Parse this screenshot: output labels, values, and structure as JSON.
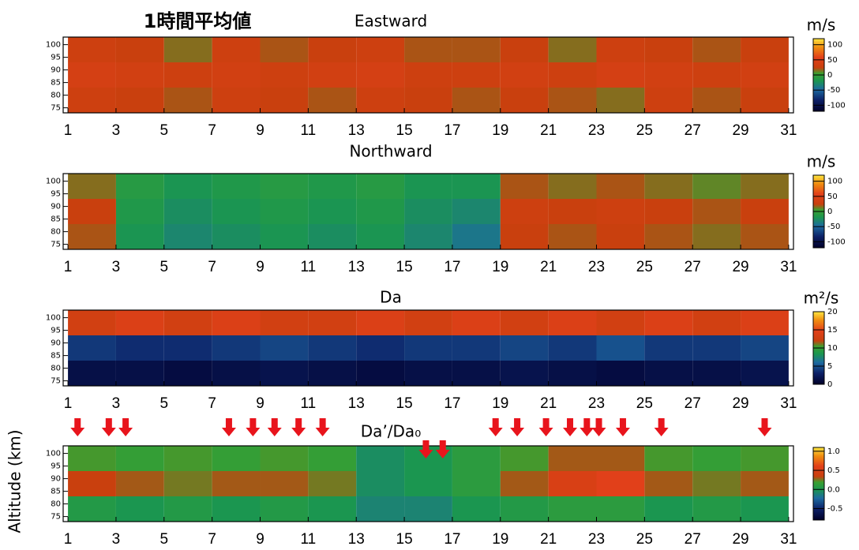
{
  "heading": "1時間平均値",
  "ylabel": "Altitude (km)",
  "chart_data": [
    {
      "type": "heatmap",
      "title": "Eastward",
      "xlim": [
        0.8,
        31.2
      ],
      "xticks": [
        1,
        3,
        5,
        7,
        9,
        11,
        13,
        15,
        17,
        19,
        21,
        23,
        25,
        27,
        29,
        31
      ],
      "ylim": [
        73,
        103
      ],
      "yticks": [
        75,
        80,
        85,
        90,
        95,
        100
      ],
      "x": [
        2,
        4,
        6,
        8,
        10,
        12,
        14,
        16,
        18,
        20,
        22,
        24,
        26,
        28,
        30
      ],
      "y": [
        78,
        88,
        98
      ],
      "z": [
        [
          30,
          25,
          20,
          30,
          25,
          20,
          30,
          25,
          20,
          25,
          20,
          15,
          30,
          20,
          25
        ],
        [
          40,
          35,
          30,
          35,
          30,
          35,
          40,
          30,
          30,
          35,
          30,
          40,
          35,
          30,
          35
        ],
        [
          30,
          25,
          15,
          30,
          20,
          25,
          30,
          20,
          20,
          25,
          15,
          30,
          25,
          20,
          25
        ]
      ],
      "colorbar": {
        "label": "m/s",
        "lim": [
          -120,
          120
        ],
        "ticks": [
          100,
          50,
          0,
          -50,
          -100
        ]
      }
    },
    {
      "type": "heatmap",
      "title": "Northward",
      "xlim": [
        0.8,
        31.2
      ],
      "xticks": [
        1,
        3,
        5,
        7,
        9,
        11,
        13,
        15,
        17,
        19,
        21,
        23,
        25,
        27,
        29,
        31
      ],
      "ylim": [
        73,
        103
      ],
      "yticks": [
        75,
        80,
        85,
        90,
        95,
        100
      ],
      "x": [
        2,
        4,
        6,
        8,
        10,
        12,
        14,
        16,
        18,
        20,
        22,
        24,
        26,
        28,
        30
      ],
      "y": [
        78,
        88,
        98
      ],
      "z": [
        [
          20,
          -20,
          -30,
          -25,
          -20,
          -25,
          -20,
          -30,
          -40,
          25,
          20,
          25,
          20,
          15,
          20
        ],
        [
          25,
          -15,
          -25,
          -20,
          -15,
          -20,
          -15,
          -25,
          -30,
          30,
          25,
          30,
          25,
          20,
          25
        ],
        [
          15,
          -10,
          -20,
          -15,
          -10,
          -15,
          -10,
          -20,
          -20,
          20,
          15,
          20,
          15,
          10,
          15
        ]
      ],
      "colorbar": {
        "label": "m/s",
        "lim": [
          -120,
          120
        ],
        "ticks": [
          100,
          50,
          0,
          -50,
          -100
        ]
      }
    },
    {
      "type": "heatmap",
      "title": "Da",
      "xlim": [
        0.8,
        31.2
      ],
      "xticks": [
        1,
        3,
        5,
        7,
        9,
        11,
        13,
        15,
        17,
        19,
        21,
        23,
        25,
        27,
        29,
        31
      ],
      "ylim": [
        73,
        103
      ],
      "yticks": [
        75,
        80,
        85,
        90,
        95,
        100
      ],
      "x": [
        2,
        4,
        6,
        8,
        10,
        12,
        14,
        16,
        18,
        20,
        22,
        24,
        26,
        28,
        30
      ],
      "y": [
        78,
        88,
        98
      ],
      "z": [
        [
          1.5,
          1.5,
          1.2,
          1.5,
          1.8,
          1.5,
          1.2,
          1.5,
          1.5,
          1.8,
          1.5,
          1.2,
          1.5,
          1.5,
          1.8
        ],
        [
          4,
          3.5,
          3.5,
          4,
          4.5,
          4,
          3.5,
          4,
          4,
          4.5,
          4,
          5,
          4,
          4,
          4.5
        ],
        [
          13,
          14,
          13,
          14,
          13,
          13,
          14,
          13,
          14,
          13,
          14,
          13,
          14,
          13,
          14
        ]
      ],
      "colorbar": {
        "label": "m²/s",
        "lim": [
          0,
          20
        ],
        "ticks": [
          20,
          15,
          10,
          5,
          0
        ]
      }
    },
    {
      "type": "heatmap",
      "title": "Da’/Da₀",
      "xlim": [
        0.8,
        31.2
      ],
      "xticks": [
        1,
        3,
        5,
        7,
        9,
        11,
        13,
        15,
        17,
        19,
        21,
        23,
        25,
        27,
        29,
        31
      ],
      "ylim": [
        73,
        103
      ],
      "yticks": [
        75,
        80,
        85,
        90,
        95,
        100
      ],
      "x": [
        2,
        4,
        6,
        8,
        10,
        12,
        14,
        16,
        18,
        20,
        22,
        24,
        26,
        28,
        30
      ],
      "y": [
        78,
        88,
        98
      ],
      "z": [
        [
          0.05,
          0,
          0.05,
          0,
          0.05,
          0,
          -0.1,
          -0.1,
          0,
          0.05,
          0.1,
          0.1,
          0,
          0.05,
          0
        ],
        [
          0.35,
          0.3,
          0.25,
          0.3,
          0.3,
          0.25,
          -0.05,
          0,
          0.1,
          0.3,
          0.5,
          0.6,
          0.3,
          0.25,
          0.3
        ],
        [
          0.2,
          0.15,
          0.2,
          0.15,
          0.2,
          0.15,
          -0.05,
          0,
          0.1,
          0.2,
          0.3,
          0.3,
          0.2,
          0.15,
          0.2
        ]
      ],
      "colorbar": {
        "label": "",
        "lim": [
          -0.8,
          1.1
        ],
        "ticks": [
          {
            "value": 1.0,
            "label": "1.0"
          },
          {
            "value": 0.5,
            "label": "0.5"
          },
          {
            "value": 0.0,
            "label": "0.0"
          },
          {
            "value": -0.5,
            "label": "-0.5"
          }
        ]
      },
      "arrows": [
        1.4,
        2.7,
        3.4,
        7.7,
        8.7,
        9.6,
        10.6,
        11.6,
        15.9,
        16.6,
        18.8,
        19.7,
        20.9,
        21.9,
        22.6,
        23.1,
        24.1,
        25.7,
        30.0
      ]
    }
  ]
}
